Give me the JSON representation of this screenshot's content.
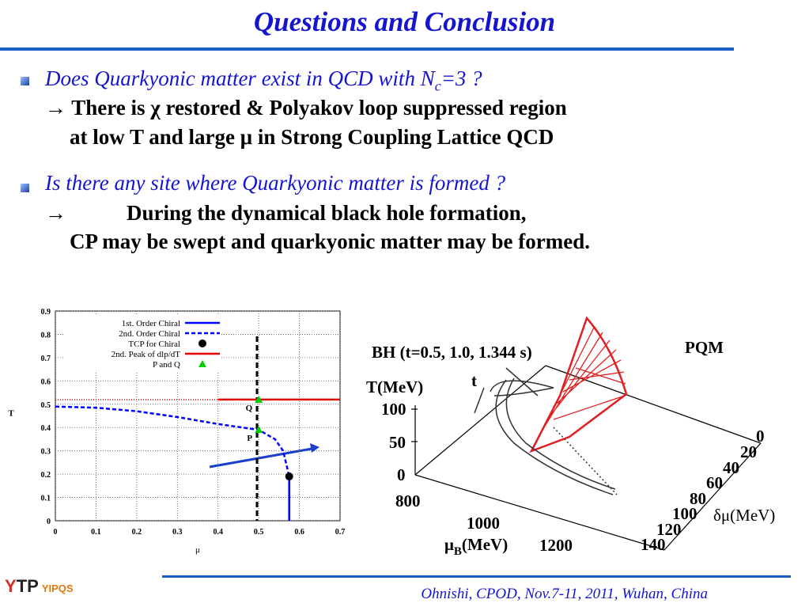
{
  "title": "Questions and Conclusion",
  "bullets": [
    {
      "question": [
        "Does Quarkyonic matter exist in QCD with N",
        "c",
        "=3 ?"
      ],
      "answer": [
        "→ There is χ restored & Polyakov loop suppressed region",
        "at low T and large μ in Strong Coupling Lattice QCD"
      ]
    },
    {
      "question": [
        "Is there any site where Quarkyonic matter is formed ?"
      ],
      "answer": [
        "→",
        "During the dynamical black hole formation,",
        "CP may be swept and quarkyonic matter may be formed."
      ]
    }
  ],
  "chart_data": {
    "type": "line",
    "xlabel": "μ",
    "ylabel": "T",
    "xlim": [
      0,
      0.7
    ],
    "ylim": [
      0,
      0.9
    ],
    "xticks": [
      0,
      0.1,
      0.2,
      0.3,
      0.4,
      0.5,
      0.6,
      0.7
    ],
    "yticks": [
      0,
      0.1,
      0.2,
      0.3,
      0.4,
      0.5,
      0.6,
      0.7,
      0.8,
      0.9
    ],
    "grid": true,
    "legend": "top",
    "series": [
      {
        "name": "1st. Order Chiral",
        "color": "#0000ff",
        "dash": false,
        "x": [
          0.575,
          0.575
        ],
        "values": [
          0.19,
          0
        ]
      },
      {
        "name": "2nd. Order Chiral",
        "color": "#0000ff",
        "dash": true,
        "x": [
          0,
          0.1,
          0.2,
          0.3,
          0.4,
          0.5,
          0.54,
          0.56,
          0.575
        ],
        "values": [
          0.49,
          0.485,
          0.47,
          0.445,
          0.415,
          0.39,
          0.35,
          0.3,
          0.19
        ]
      },
      {
        "name": "TCP for Chiral",
        "color": "#000000",
        "marker": "circle",
        "x": [
          0.575
        ],
        "values": [
          0.19
        ]
      },
      {
        "name": "2nd. Peak of dlp/dT",
        "color": "#e00000",
        "dash": false,
        "x": [
          0.4,
          0.7
        ],
        "values": [
          0.52,
          0.52
        ]
      },
      {
        "name": "P and Q",
        "color": "#00cc00",
        "marker": "triangle",
        "x": [
          0.5,
          0.5
        ],
        "values": [
          0.39,
          0.52
        ],
        "point_labels": [
          "P",
          "Q"
        ]
      }
    ]
  },
  "plot3d": {
    "title": "BH (t=0.5, 1.0, 1.344 s)",
    "model": "PQM",
    "t_label": "t",
    "y_label": "T(MeV)",
    "y_ticks": [
      "100",
      "50",
      "0"
    ],
    "x_ticks": [
      "800",
      "1000",
      "1200"
    ],
    "x_label": [
      "μ",
      "B",
      "(MeV)"
    ],
    "z_ticks": [
      "0",
      "20",
      "40",
      "60",
      "80",
      "100",
      "120",
      "140"
    ],
    "z_label": "δμ(MeV)"
  },
  "footer": {
    "logo": [
      "Y",
      "TP",
      "YIPQS"
    ],
    "text": "Ohnishi, CPOD, Nov.7-11, 2011, Wuhan, China"
  }
}
